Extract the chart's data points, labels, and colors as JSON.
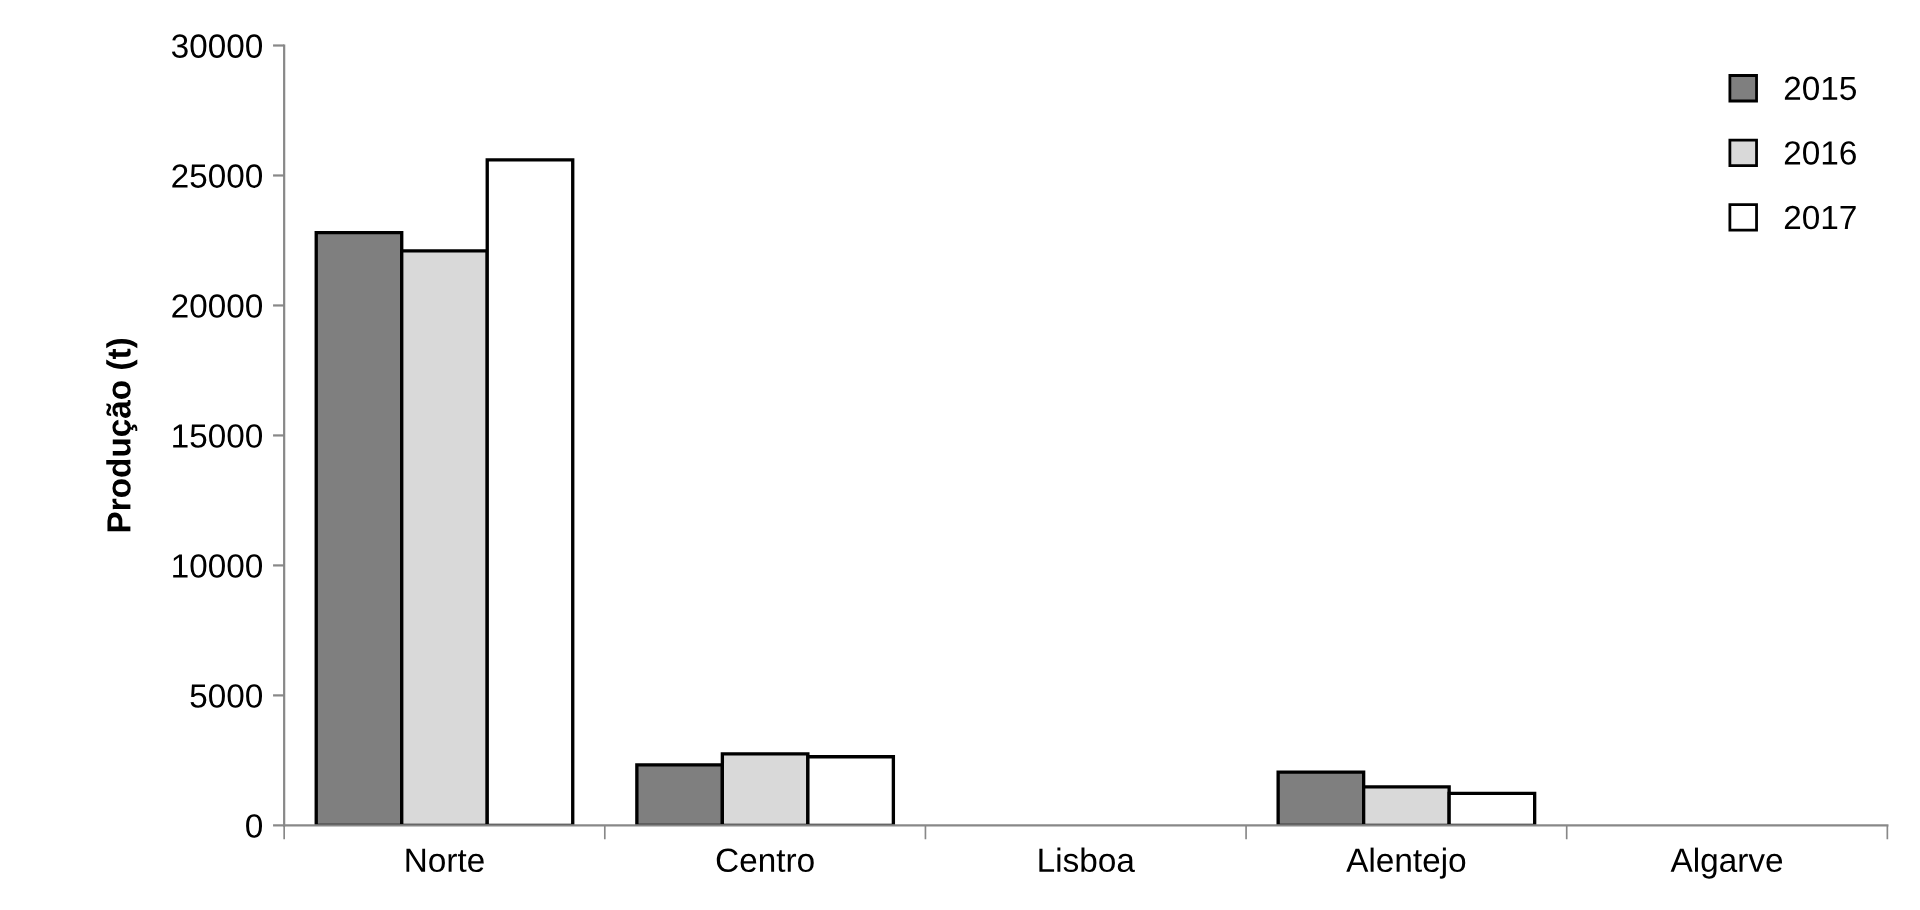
{
  "chart_data": {
    "type": "bar",
    "ylabel": "Produção (t)",
    "categories": [
      "Norte",
      "Centro",
      "Lisboa",
      "Alentejo",
      "Algarve"
    ],
    "series": [
      {
        "name": "2015",
        "color": "#7f7f7f",
        "values": [
          22800,
          2330,
          0,
          2050,
          0
        ]
      },
      {
        "name": "2016",
        "color": "#d9d9d9",
        "values": [
          22100,
          2750,
          0,
          1480,
          0
        ]
      },
      {
        "name": "2017",
        "color": "#ffffff",
        "values": [
          25600,
          2640,
          0,
          1230,
          0
        ]
      }
    ],
    "ylim": [
      0,
      30000
    ],
    "yticks": [
      0,
      5000,
      10000,
      15000,
      20000,
      25000,
      30000
    ],
    "grid": false,
    "legend": "top right"
  }
}
